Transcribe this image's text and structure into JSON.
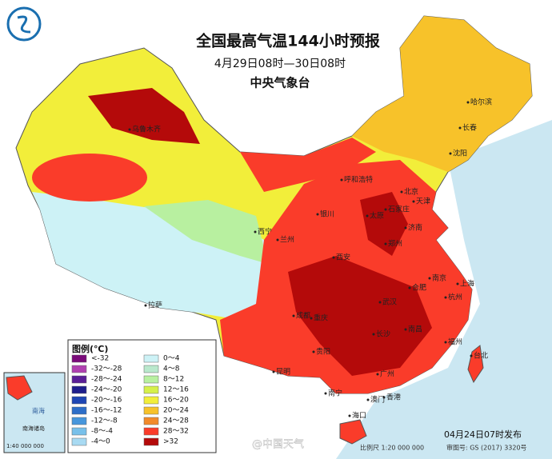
{
  "header": {
    "title": "全国最高气温144小时预报",
    "period": "4月29日08时—30日08时",
    "issuer": "中央气象台"
  },
  "legend": {
    "title": "图例(℃)",
    "items": [
      {
        "label": "<-32",
        "color": "#7a0a7a"
      },
      {
        "label": "-32～-28",
        "color": "#b040b0"
      },
      {
        "label": "-28～-24",
        "color": "#5a1e96"
      },
      {
        "label": "-24～-20",
        "color": "#1e1e8c"
      },
      {
        "label": "-20～-16",
        "color": "#1e46b4"
      },
      {
        "label": "-16～-12",
        "color": "#2d6ec8"
      },
      {
        "label": "-12～-8",
        "color": "#4696dc"
      },
      {
        "label": "-8～-4",
        "color": "#78c0ea"
      },
      {
        "label": "-4～0",
        "color": "#a8daf2"
      },
      {
        "label": "0～4",
        "color": "#cdf2f6"
      },
      {
        "label": "4～8",
        "color": "#b9e8cc"
      },
      {
        "label": "8～12",
        "color": "#b8f0a0"
      },
      {
        "label": "12～16",
        "color": "#d6f04a"
      },
      {
        "label": "16～20",
        "color": "#f2ee3a"
      },
      {
        "label": "20～24",
        "color": "#f7c22a"
      },
      {
        "label": "24～28",
        "color": "#f28a2a"
      },
      {
        "label": "28～32",
        "color": "#fa3c2a"
      },
      {
        "label": ">32",
        "color": "#b40a0a"
      }
    ]
  },
  "cities": [
    "乌鲁木齐",
    "哈尔滨",
    "长春",
    "沈阳",
    "呼和浩特",
    "北京",
    "天津",
    "石家庄",
    "太原",
    "济南",
    "银川",
    "西宁",
    "兰州",
    "西安",
    "郑州",
    "南京",
    "上海",
    "合肥",
    "武汉",
    "杭州",
    "拉萨",
    "成都",
    "重庆",
    "长沙",
    "南昌",
    "福州",
    "贵阳",
    "昆明",
    "台北",
    "广州",
    "南宁",
    "香港",
    "澳门",
    "海口"
  ],
  "inset": {
    "sea": "南海",
    "islands": "南海诸岛",
    "scale": "1:40 000 000"
  },
  "footer": {
    "issued": "04月24日07时发布",
    "scale": "比例尺 1:20 000 000",
    "approval": "审图号: GS (2017) 3320号",
    "watermark": "@中国天气"
  }
}
